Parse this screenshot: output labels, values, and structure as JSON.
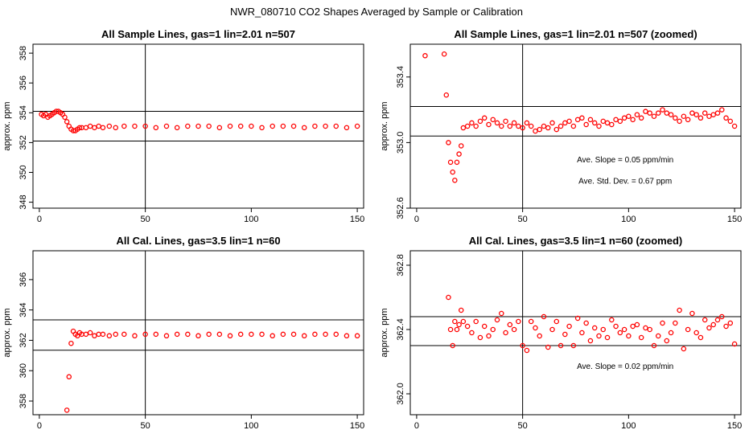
{
  "title": "NWR_080710  CO2 Shapes Averaged by Sample or Calibration",
  "chart_data": [
    {
      "type": "scatter",
      "title": "All Sample Lines, gas=1 lin=2.01 n=507",
      "ylabel": "approx. ppm",
      "xlabel": "",
      "xlim": [
        -3,
        153
      ],
      "ylim": [
        347.6,
        358.6
      ],
      "xticks": [
        0,
        50,
        100,
        150
      ],
      "yticks": [
        348,
        350,
        352,
        354,
        356,
        358
      ],
      "xtick_labels": [
        "0",
        "50",
        "100",
        "150"
      ],
      "ytick_labels": [
        "348",
        "350",
        "352",
        "354",
        "356",
        "358"
      ],
      "vline": 50,
      "hlines": [
        354.1,
        352.1
      ],
      "annotations": [],
      "color": "#ff0000",
      "x": [
        1,
        2,
        3,
        4,
        5,
        6,
        7,
        8,
        9,
        10,
        11,
        12,
        13,
        14,
        15,
        16,
        17,
        18,
        19,
        20,
        22,
        24,
        26,
        28,
        30,
        33,
        36,
        40,
        45,
        50,
        55,
        60,
        65,
        70,
        75,
        80,
        85,
        90,
        95,
        100,
        105,
        110,
        115,
        120,
        125,
        130,
        135,
        140,
        145,
        150
      ],
      "y": [
        353.9,
        353.8,
        353.9,
        353.7,
        353.8,
        353.9,
        354.0,
        354.1,
        354.1,
        354.0,
        353.9,
        353.7,
        353.4,
        353.1,
        352.9,
        352.8,
        352.8,
        352.9,
        353.0,
        353.0,
        353.0,
        353.1,
        353.0,
        353.1,
        353.0,
        353.1,
        353.0,
        353.1,
        353.1,
        353.1,
        353.0,
        353.1,
        353.0,
        353.1,
        353.1,
        353.1,
        353.0,
        353.1,
        353.1,
        353.1,
        353.0,
        353.1,
        353.1,
        353.1,
        353.0,
        353.1,
        353.1,
        353.1,
        353.0,
        353.1
      ]
    },
    {
      "type": "scatter",
      "title": "All Sample Lines, gas=1 lin=2.01 n=507 (zoomed)",
      "ylabel": "approx. ppm",
      "xlabel": "",
      "xlim": [
        -3,
        153
      ],
      "ylim": [
        352.6,
        353.6
      ],
      "xticks": [
        0,
        50,
        100,
        150
      ],
      "yticks": [
        352.6,
        353.0,
        353.4
      ],
      "xtick_labels": [
        "0",
        "50",
        "100",
        "150"
      ],
      "ytick_labels": [
        "352.6",
        "353.0",
        "353.4"
      ],
      "vline": 50,
      "hlines": [
        353.22,
        353.04
      ],
      "annotations": [
        "Ave. Slope =  0.05  ppm/min",
        "Ave. Std. Dev. =  0.67  ppm"
      ],
      "color": "#ff0000",
      "x": [
        4,
        13,
        14,
        15,
        16,
        17,
        18,
        19,
        20,
        21,
        22,
        24,
        26,
        28,
        30,
        32,
        34,
        36,
        38,
        40,
        42,
        44,
        46,
        48,
        50,
        52,
        54,
        56,
        58,
        60,
        62,
        64,
        66,
        68,
        70,
        72,
        74,
        76,
        78,
        80,
        82,
        84,
        86,
        88,
        90,
        92,
        94,
        96,
        98,
        100,
        102,
        104,
        106,
        108,
        110,
        112,
        114,
        116,
        118,
        120,
        122,
        124,
        126,
        128,
        130,
        132,
        134,
        136,
        138,
        140,
        142,
        144,
        146,
        148,
        150
      ],
      "y": [
        353.53,
        353.54,
        353.29,
        353.0,
        352.88,
        352.82,
        352.77,
        352.88,
        352.93,
        352.98,
        353.09,
        353.1,
        353.12,
        353.1,
        353.13,
        353.15,
        353.11,
        353.14,
        353.12,
        353.1,
        353.13,
        353.1,
        353.12,
        353.1,
        353.09,
        353.12,
        353.1,
        353.07,
        353.08,
        353.1,
        353.09,
        353.12,
        353.08,
        353.1,
        353.12,
        353.13,
        353.1,
        353.14,
        353.15,
        353.11,
        353.14,
        353.12,
        353.1,
        353.13,
        353.12,
        353.11,
        353.14,
        353.13,
        353.15,
        353.16,
        353.14,
        353.17,
        353.15,
        353.19,
        353.18,
        353.16,
        353.18,
        353.2,
        353.18,
        353.17,
        353.15,
        353.13,
        353.16,
        353.14,
        353.18,
        353.17,
        353.15,
        353.18,
        353.16,
        353.17,
        353.18,
        353.2,
        353.15,
        353.13,
        353.1
      ]
    },
    {
      "type": "scatter",
      "title": "All Cal. Lines, gas=3.5 lin=1 n=60",
      "ylabel": "approx. ppm",
      "xlabel": "",
      "xlim": [
        -3,
        153
      ],
      "ylim": [
        357.1,
        367.9
      ],
      "xticks": [
        0,
        50,
        100,
        150
      ],
      "yticks": [
        358,
        360,
        362,
        364,
        366
      ],
      "xtick_labels": [
        "0",
        "50",
        "100",
        "150"
      ],
      "ytick_labels": [
        "358",
        "360",
        "362",
        "364",
        "366"
      ],
      "vline": 50,
      "hlines": [
        363.35,
        361.35
      ],
      "annotations": [],
      "color": "#ff0000",
      "x": [
        13,
        14,
        15,
        16,
        17,
        18,
        19,
        20,
        22,
        24,
        26,
        28,
        30,
        33,
        36,
        40,
        45,
        50,
        55,
        60,
        65,
        70,
        75,
        80,
        85,
        90,
        95,
        100,
        105,
        110,
        115,
        120,
        125,
        130,
        135,
        140,
        145,
        150
      ],
      "y": [
        357.4,
        359.6,
        361.8,
        362.6,
        362.4,
        362.3,
        362.5,
        362.4,
        362.4,
        362.5,
        362.3,
        362.4,
        362.4,
        362.3,
        362.4,
        362.4,
        362.3,
        362.4,
        362.4,
        362.3,
        362.4,
        362.4,
        362.3,
        362.4,
        362.4,
        362.3,
        362.4,
        362.4,
        362.4,
        362.3,
        362.4,
        362.4,
        362.3,
        362.4,
        362.4,
        362.4,
        362.3,
        362.3
      ]
    },
    {
      "type": "scatter",
      "title": "All Cal. Lines, gas=3.5 lin=1 n=60 (zoomed)",
      "ylabel": "approx. ppm",
      "xlabel": "",
      "xlim": [
        -3,
        153
      ],
      "ylim": [
        361.87,
        362.89
      ],
      "xticks": [
        0,
        50,
        100,
        150
      ],
      "yticks": [
        362.0,
        362.4,
        362.8
      ],
      "xtick_labels": [
        "0",
        "50",
        "100",
        "150"
      ],
      "ytick_labels": [
        "362.0",
        "362.4",
        "362.8"
      ],
      "vline": 50,
      "hlines": [
        362.48,
        362.3
      ],
      "annotations": [
        "Ave. Slope =  0.02  ppm/min"
      ],
      "color": "#ff0000",
      "x": [
        15,
        16,
        17,
        18,
        19,
        20,
        21,
        22,
        24,
        26,
        28,
        30,
        32,
        34,
        36,
        38,
        40,
        42,
        44,
        46,
        48,
        50,
        52,
        54,
        56,
        58,
        60,
        62,
        64,
        66,
        68,
        70,
        72,
        74,
        76,
        78,
        80,
        82,
        84,
        86,
        88,
        90,
        92,
        94,
        96,
        98,
        100,
        102,
        104,
        106,
        108,
        110,
        112,
        114,
        116,
        118,
        120,
        122,
        124,
        126,
        128,
        130,
        132,
        134,
        136,
        138,
        140,
        142,
        144,
        146,
        148,
        150
      ],
      "y": [
        362.6,
        362.4,
        362.3,
        362.45,
        362.4,
        362.43,
        362.52,
        362.45,
        362.42,
        362.38,
        362.45,
        362.35,
        362.42,
        362.36,
        362.4,
        362.46,
        362.5,
        362.38,
        362.43,
        362.4,
        362.45,
        362.3,
        362.27,
        362.45,
        362.41,
        362.36,
        362.48,
        362.29,
        362.4,
        362.45,
        362.3,
        362.37,
        362.42,
        362.3,
        362.47,
        362.38,
        362.44,
        362.33,
        362.41,
        362.36,
        362.4,
        362.35,
        362.46,
        362.42,
        362.38,
        362.4,
        362.36,
        362.42,
        362.43,
        362.35,
        362.41,
        362.4,
        362.3,
        362.36,
        362.44,
        362.33,
        362.38,
        362.44,
        362.52,
        362.28,
        362.4,
        362.5,
        362.38,
        362.35,
        362.46,
        362.41,
        362.43,
        362.46,
        362.48,
        362.42,
        362.44,
        362.31
      ]
    }
  ]
}
